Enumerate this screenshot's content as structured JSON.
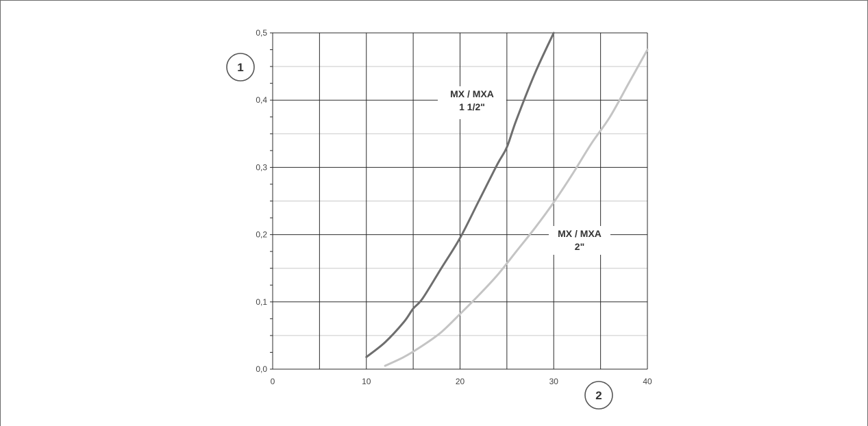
{
  "chart_data": {
    "type": "line",
    "xlim": [
      0,
      40
    ],
    "ylim": [
      0.0,
      0.5
    ],
    "x_ticks": [
      "0",
      "10",
      "20",
      "30",
      "40"
    ],
    "y_ticks": [
      "0,0",
      "0,1",
      "0,2",
      "0,3",
      "0,4",
      "0,5"
    ],
    "grid": true,
    "axis_markers": {
      "y": "1",
      "x": "2"
    },
    "series": [
      {
        "label_lines": [
          "MX / MXA",
          "1 1/2\""
        ],
        "color": "#6e6e6e",
        "x": [
          10,
          12,
          14,
          15,
          16,
          18,
          20,
          22,
          24,
          25,
          26,
          28,
          30
        ],
        "y": [
          0.018,
          0.04,
          0.07,
          0.09,
          0.105,
          0.15,
          0.195,
          0.25,
          0.305,
          0.33,
          0.37,
          0.44,
          0.5
        ]
      },
      {
        "label_lines": [
          "MX / MXA",
          "2\""
        ],
        "color": "#c4c4c4",
        "x": [
          12,
          14,
          16,
          18,
          20,
          22,
          24,
          26,
          28,
          30,
          32,
          34,
          36,
          38,
          40
        ],
        "y": [
          0.005,
          0.018,
          0.035,
          0.055,
          0.082,
          0.11,
          0.14,
          0.175,
          0.21,
          0.248,
          0.29,
          0.335,
          0.375,
          0.425,
          0.475
        ]
      }
    ]
  }
}
